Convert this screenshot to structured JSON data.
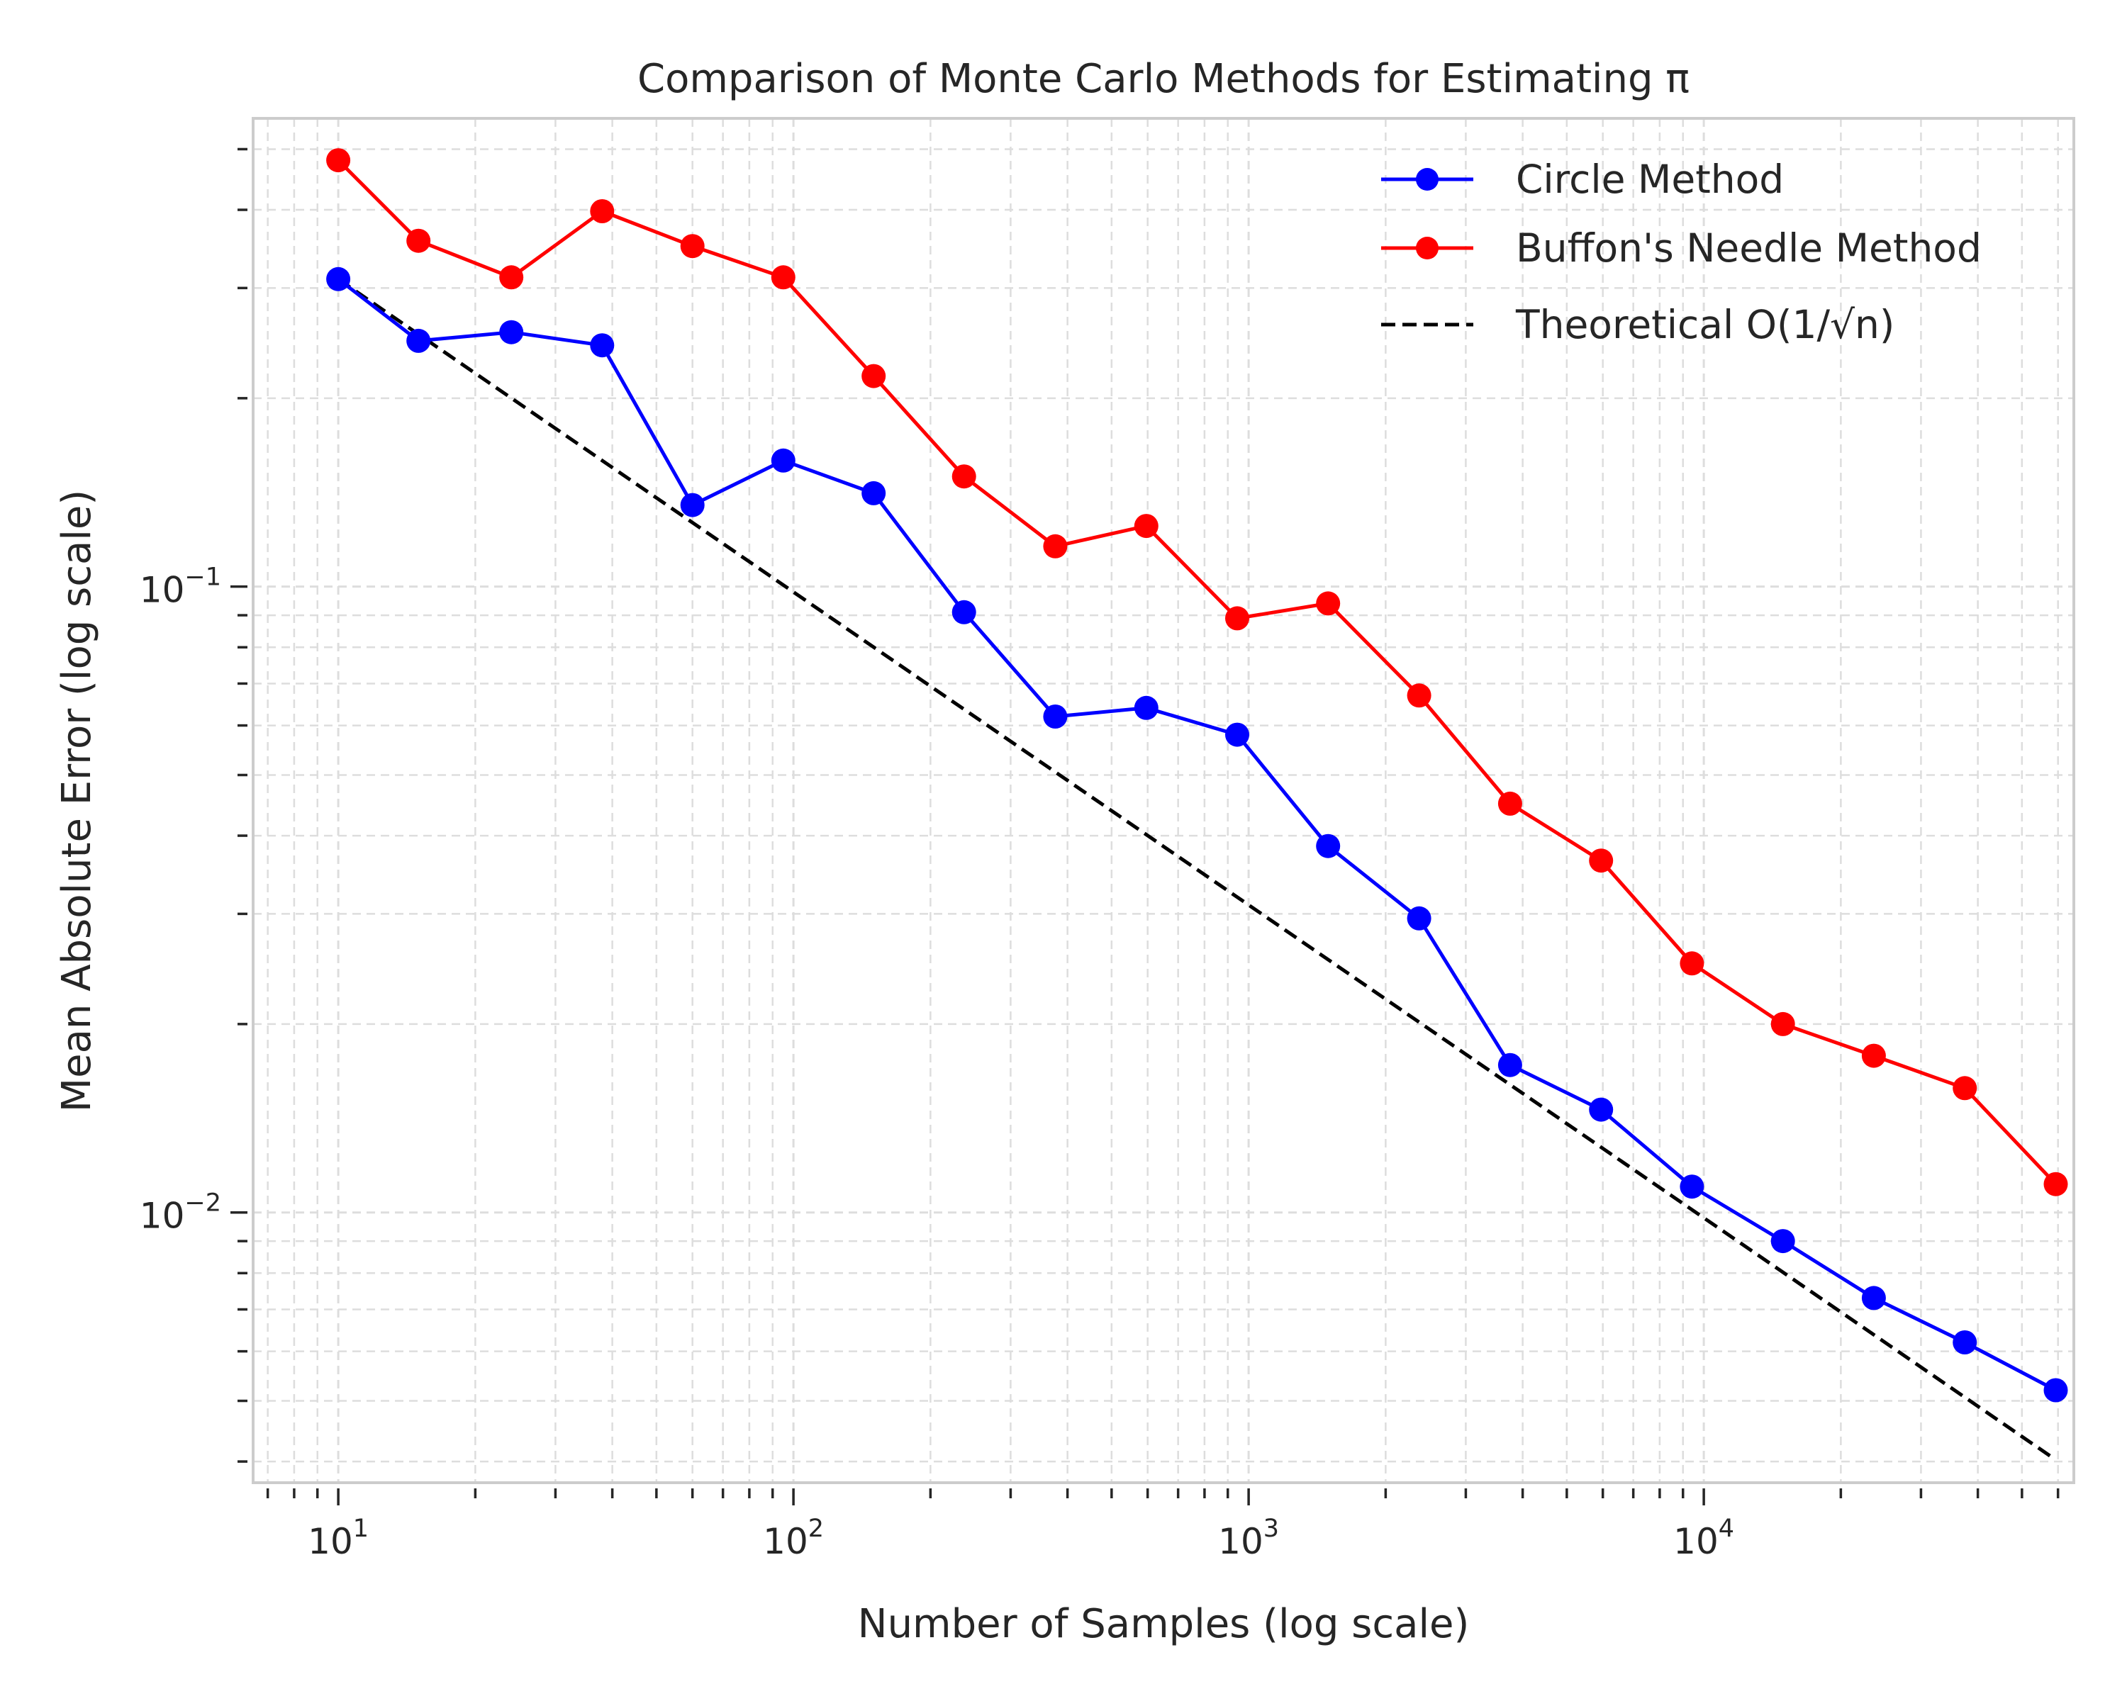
{
  "chart_data": {
    "type": "line",
    "title": "Comparison of Monte Carlo Methods for Estimating π",
    "xlabel": "Number of Samples (log scale)",
    "ylabel": "Mean Absolute Error (log scale)",
    "xscale": "log",
    "yscale": "log",
    "xlim": [
      6.5,
      65000
    ],
    "ylim": [
      0.0037,
      0.56
    ],
    "grid": true,
    "legend_position": "top-right",
    "x_ticks": [
      {
        "value": 10,
        "base": "10",
        "exp": "1"
      },
      {
        "value": 100,
        "base": "10",
        "exp": "2"
      },
      {
        "value": 1000,
        "base": "10",
        "exp": "3"
      },
      {
        "value": 10000,
        "base": "10",
        "exp": "4"
      }
    ],
    "y_ticks": [
      {
        "value": 0.01,
        "base": "10",
        "exp": "−2"
      },
      {
        "value": 0.1,
        "base": "10",
        "exp": "−1"
      }
    ],
    "x": [
      10,
      15,
      24,
      38,
      60,
      95,
      150,
      237,
      376,
      596,
      944,
      1495,
      2369,
      3753,
      5946,
      9419,
      14921,
      23636,
      37442,
      59313
    ],
    "series": [
      {
        "name": "Circle Method",
        "color": "#0000ff",
        "style": "solid",
        "marker": "circle",
        "values": [
          0.31,
          0.247,
          0.255,
          0.243,
          0.135,
          0.159,
          0.141,
          0.091,
          0.062,
          0.064,
          0.058,
          0.0385,
          0.0295,
          0.0172,
          0.0146,
          0.011,
          0.009,
          0.0073,
          0.0062,
          0.0052
        ]
      },
      {
        "name": "Buffon's Needle Method",
        "color": "#ff0000",
        "style": "solid",
        "marker": "circle",
        "values": [
          0.48,
          0.357,
          0.312,
          0.398,
          0.35,
          0.312,
          0.217,
          0.15,
          0.116,
          0.125,
          0.089,
          0.094,
          0.067,
          0.045,
          0.0365,
          0.025,
          0.02,
          0.0178,
          0.0158,
          0.0111
        ]
      },
      {
        "name": "Theoretical O(1/√n)",
        "color": "#000000",
        "style": "dashed",
        "marker": "none",
        "x": [
          10,
          59313
        ],
        "values": [
          0.31,
          0.004025
        ]
      }
    ]
  }
}
